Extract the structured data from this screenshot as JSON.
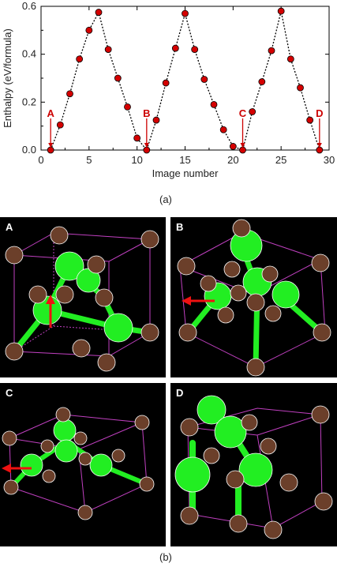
{
  "figure": {
    "caption_a": "(a)",
    "caption_b": "(b)",
    "panels": [
      {
        "label": "A"
      },
      {
        "label": "B"
      },
      {
        "label": "C"
      },
      {
        "label": "D"
      }
    ]
  },
  "chart_data": {
    "type": "scatter",
    "xlabel": "Image number",
    "ylabel": "Enthalpy (eV/formula)",
    "xlim": [
      0,
      30
    ],
    "ylim": [
      0,
      0.6
    ],
    "x_ticks": [
      "0",
      "5",
      "10",
      "15",
      "20",
      "25",
      "30"
    ],
    "y_ticks": [
      "0.0",
      "0.2",
      "0.4",
      "0.6"
    ],
    "series": [
      {
        "x": [
          1,
          2,
          3,
          4,
          5,
          6,
          7,
          8,
          9,
          10,
          11,
          12,
          13,
          14,
          15,
          16,
          17,
          18,
          19,
          20,
          21,
          22,
          23,
          24,
          25,
          26,
          27,
          28,
          29
        ],
        "y": [
          0.0,
          0.105,
          0.235,
          0.38,
          0.5,
          0.575,
          0.42,
          0.3,
          0.18,
          0.05,
          0.0,
          0.125,
          0.28,
          0.425,
          0.57,
          0.42,
          0.295,
          0.19,
          0.085,
          0.015,
          0.0,
          0.16,
          0.285,
          0.415,
          0.58,
          0.38,
          0.26,
          0.125,
          0.0
        ],
        "color": "#d40000",
        "line_style": "dotted",
        "line_color": "#000000"
      }
    ],
    "annotations": [
      {
        "text": "A",
        "x": 1
      },
      {
        "text": "B",
        "x": 11
      },
      {
        "text": "C",
        "x": 21
      },
      {
        "text": "D",
        "x": 29
      }
    ],
    "annotation_color": "#cc0000",
    "grid": false
  },
  "colors": {
    "metal_atom": "#22ee22",
    "anion_atom": "#6b3f2a",
    "cell_edge": "#c040c0",
    "arrow": "#ee1111"
  }
}
